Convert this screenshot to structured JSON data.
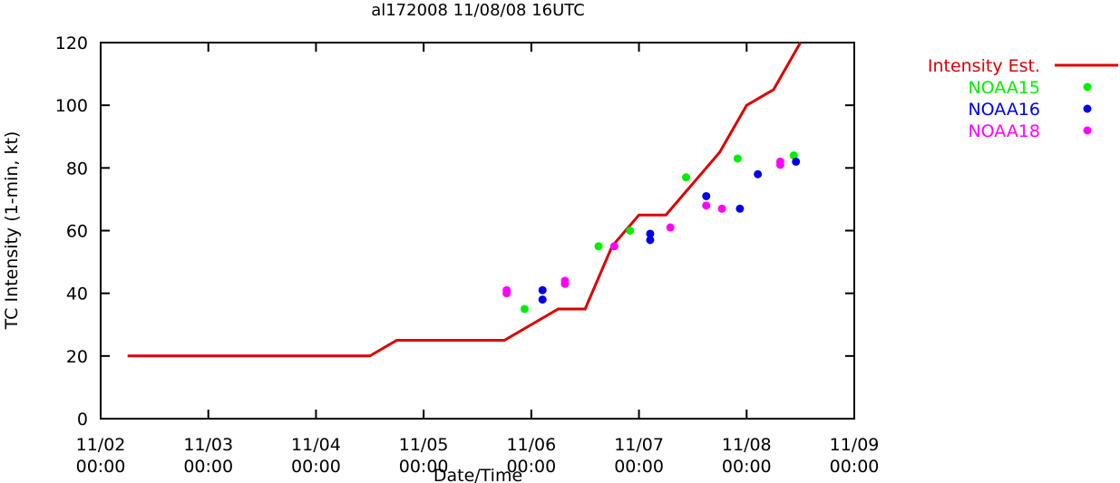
{
  "chart_data": {
    "type": "line",
    "title": "al172008 11/08/08 16UTC",
    "xlabel": "Date/Time",
    "ylabel": "TC Intensity (1-min, kt)",
    "ylim": [
      0,
      120
    ],
    "yticks": [
      0,
      20,
      40,
      60,
      80,
      100,
      120
    ],
    "xlim": [
      "2008-11-02 00:00",
      "2008-11-09 00:00"
    ],
    "xticks": [
      {
        "date": "2008-11-02 00:00",
        "line1": "11/02",
        "line2": "00:00"
      },
      {
        "date": "2008-11-03 00:00",
        "line1": "11/03",
        "line2": "00:00"
      },
      {
        "date": "2008-11-04 00:00",
        "line1": "11/04",
        "line2": "00:00"
      },
      {
        "date": "2008-11-05 00:00",
        "line1": "11/05",
        "line2": "00:00"
      },
      {
        "date": "2008-11-06 00:00",
        "line1": "11/06",
        "line2": "00:00"
      },
      {
        "date": "2008-11-07 00:00",
        "line1": "11/07",
        "line2": "00:00"
      },
      {
        "date": "2008-11-08 00:00",
        "line1": "11/08",
        "line2": "00:00"
      },
      {
        "date": "2008-11-09 00:00",
        "line1": "11/09",
        "line2": "00:00"
      }
    ],
    "grid": false,
    "legend": "outside-right",
    "series": [
      {
        "name": "Intensity Est.",
        "kind": "line",
        "color": "#dd0000",
        "points": [
          {
            "x": "2008-11-02 06:00",
            "y": 20
          },
          {
            "x": "2008-11-04 12:00",
            "y": 20
          },
          {
            "x": "2008-11-04 18:00",
            "y": 25
          },
          {
            "x": "2008-11-05 18:00",
            "y": 25
          },
          {
            "x": "2008-11-06 06:00",
            "y": 35
          },
          {
            "x": "2008-11-06 12:00",
            "y": 35
          },
          {
            "x": "2008-11-06 18:00",
            "y": 55
          },
          {
            "x": "2008-11-07 00:00",
            "y": 65
          },
          {
            "x": "2008-11-07 06:00",
            "y": 65
          },
          {
            "x": "2008-11-07 18:00",
            "y": 85
          },
          {
            "x": "2008-11-08 00:00",
            "y": 100
          },
          {
            "x": "2008-11-08 06:00",
            "y": 105
          },
          {
            "x": "2008-11-08 12:00",
            "y": 120
          }
        ]
      },
      {
        "name": "NOAA15",
        "kind": "scatter",
        "color": "#00ee00",
        "points": [
          {
            "x": "2008-11-05 22:30",
            "y": 35
          },
          {
            "x": "2008-11-06 15:00",
            "y": 55
          },
          {
            "x": "2008-11-06 22:00",
            "y": 60
          },
          {
            "x": "2008-11-07 10:30",
            "y": 77
          },
          {
            "x": "2008-11-07 22:00",
            "y": 83
          },
          {
            "x": "2008-11-08 10:30",
            "y": 84
          }
        ]
      },
      {
        "name": "NOAA16",
        "kind": "scatter",
        "color": "#0000ee",
        "points": [
          {
            "x": "2008-11-06 02:30",
            "y": 41
          },
          {
            "x": "2008-11-06 02:30",
            "y": 38
          },
          {
            "x": "2008-11-07 02:30",
            "y": 59
          },
          {
            "x": "2008-11-07 02:30",
            "y": 57
          },
          {
            "x": "2008-11-07 15:00",
            "y": 71
          },
          {
            "x": "2008-11-07 22:30",
            "y": 67
          },
          {
            "x": "2008-11-08 02:30",
            "y": 78
          },
          {
            "x": "2008-11-08 11:00",
            "y": 82
          }
        ]
      },
      {
        "name": "NOAA18",
        "kind": "scatter",
        "color": "#ff00ff",
        "points": [
          {
            "x": "2008-11-05 18:30",
            "y": 41
          },
          {
            "x": "2008-11-05 18:30",
            "y": 40
          },
          {
            "x": "2008-11-06 07:30",
            "y": 44
          },
          {
            "x": "2008-11-06 07:30",
            "y": 43
          },
          {
            "x": "2008-11-06 18:30",
            "y": 55
          },
          {
            "x": "2008-11-07 07:00",
            "y": 61
          },
          {
            "x": "2008-11-07 15:00",
            "y": 68
          },
          {
            "x": "2008-11-07 18:30",
            "y": 67
          },
          {
            "x": "2008-11-08 07:30",
            "y": 82
          },
          {
            "x": "2008-11-08 07:30",
            "y": 81
          }
        ]
      }
    ]
  }
}
